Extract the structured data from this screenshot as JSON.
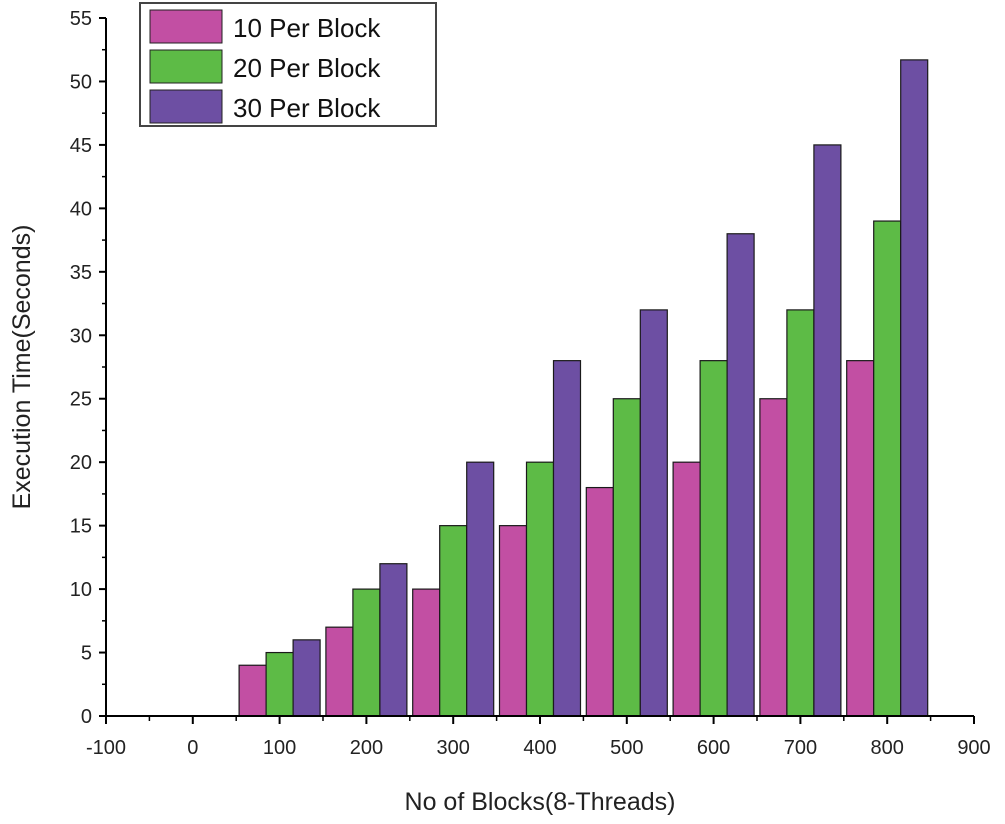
{
  "chart_data": {
    "type": "bar",
    "title": "",
    "xlabel": "No of Blocks(8-Threads)",
    "ylabel": "Execution Time(Seconds)",
    "xlim": [
      -100,
      900
    ],
    "ylim": [
      0,
      55
    ],
    "x_ticks": [
      -100,
      0,
      100,
      200,
      300,
      400,
      500,
      600,
      700,
      800,
      900
    ],
    "y_ticks": [
      0,
      5,
      10,
      15,
      20,
      25,
      30,
      35,
      40,
      45,
      50,
      55
    ],
    "categories": [
      100,
      200,
      300,
      400,
      500,
      600,
      700,
      800
    ],
    "bar_width": 27,
    "series": [
      {
        "name": "10 Per Block",
        "color": "#c24fa3",
        "values": [
          4,
          7,
          10,
          15,
          18,
          20,
          25,
          28
        ]
      },
      {
        "name": "20 Per Block",
        "color": "#5dbb46",
        "values": [
          5,
          10,
          15,
          20,
          25,
          28,
          32,
          39
        ]
      },
      {
        "name": "30 Per Block",
        "color": "#6d4fa3",
        "values": [
          6,
          12,
          20,
          28,
          32,
          38,
          45,
          51.7
        ]
      }
    ],
    "legend_position": "top-left",
    "grid": false
  }
}
